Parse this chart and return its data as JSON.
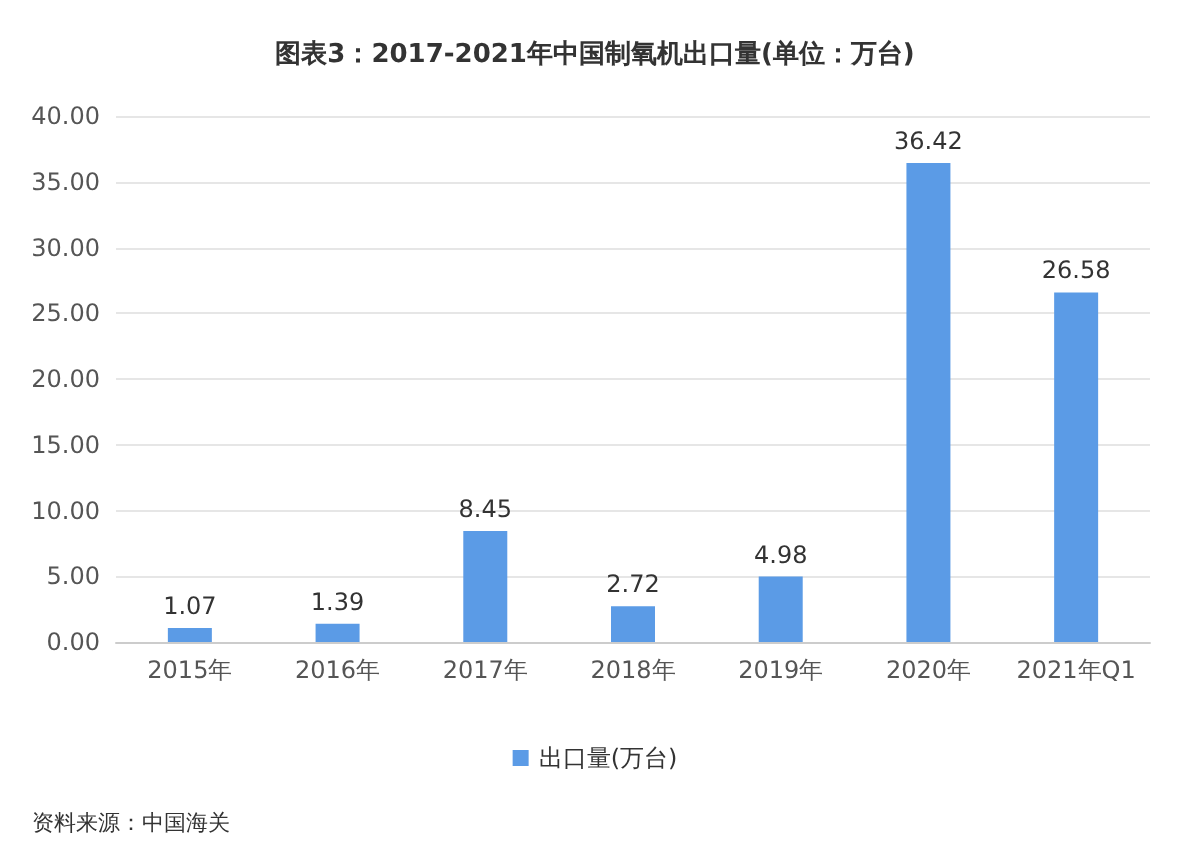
{
  "chart_data": {
    "type": "bar",
    "title": "图表3：2017-2021年中国制氧机出口量(单位：万台)",
    "categories": [
      "2015年",
      "2016年",
      "2017年",
      "2018年",
      "2019年",
      "2020年",
      "2021年Q1"
    ],
    "series": [
      {
        "name": "出口量(万台)",
        "color": "#5b9be6",
        "values": [
          1.07,
          1.39,
          8.45,
          2.72,
          4.98,
          36.42,
          26.58
        ]
      }
    ],
    "ylim": [
      0,
      40
    ],
    "yticks": [
      {
        "value": 0,
        "label": "0.00"
      },
      {
        "value": 5,
        "label": "5.00"
      },
      {
        "value": 10,
        "label": "10.00"
      },
      {
        "value": 15,
        "label": "15.00"
      },
      {
        "value": 20,
        "label": "20.00"
      },
      {
        "value": 25,
        "label": "25.00"
      },
      {
        "value": 30,
        "label": "30.00"
      },
      {
        "value": 35,
        "label": "35.00"
      },
      {
        "value": 40,
        "label": "40.00"
      }
    ],
    "grid": "y",
    "legend": "bottom",
    "data_labels": true,
    "annotations": [
      "资料来源：中国海关"
    ]
  }
}
